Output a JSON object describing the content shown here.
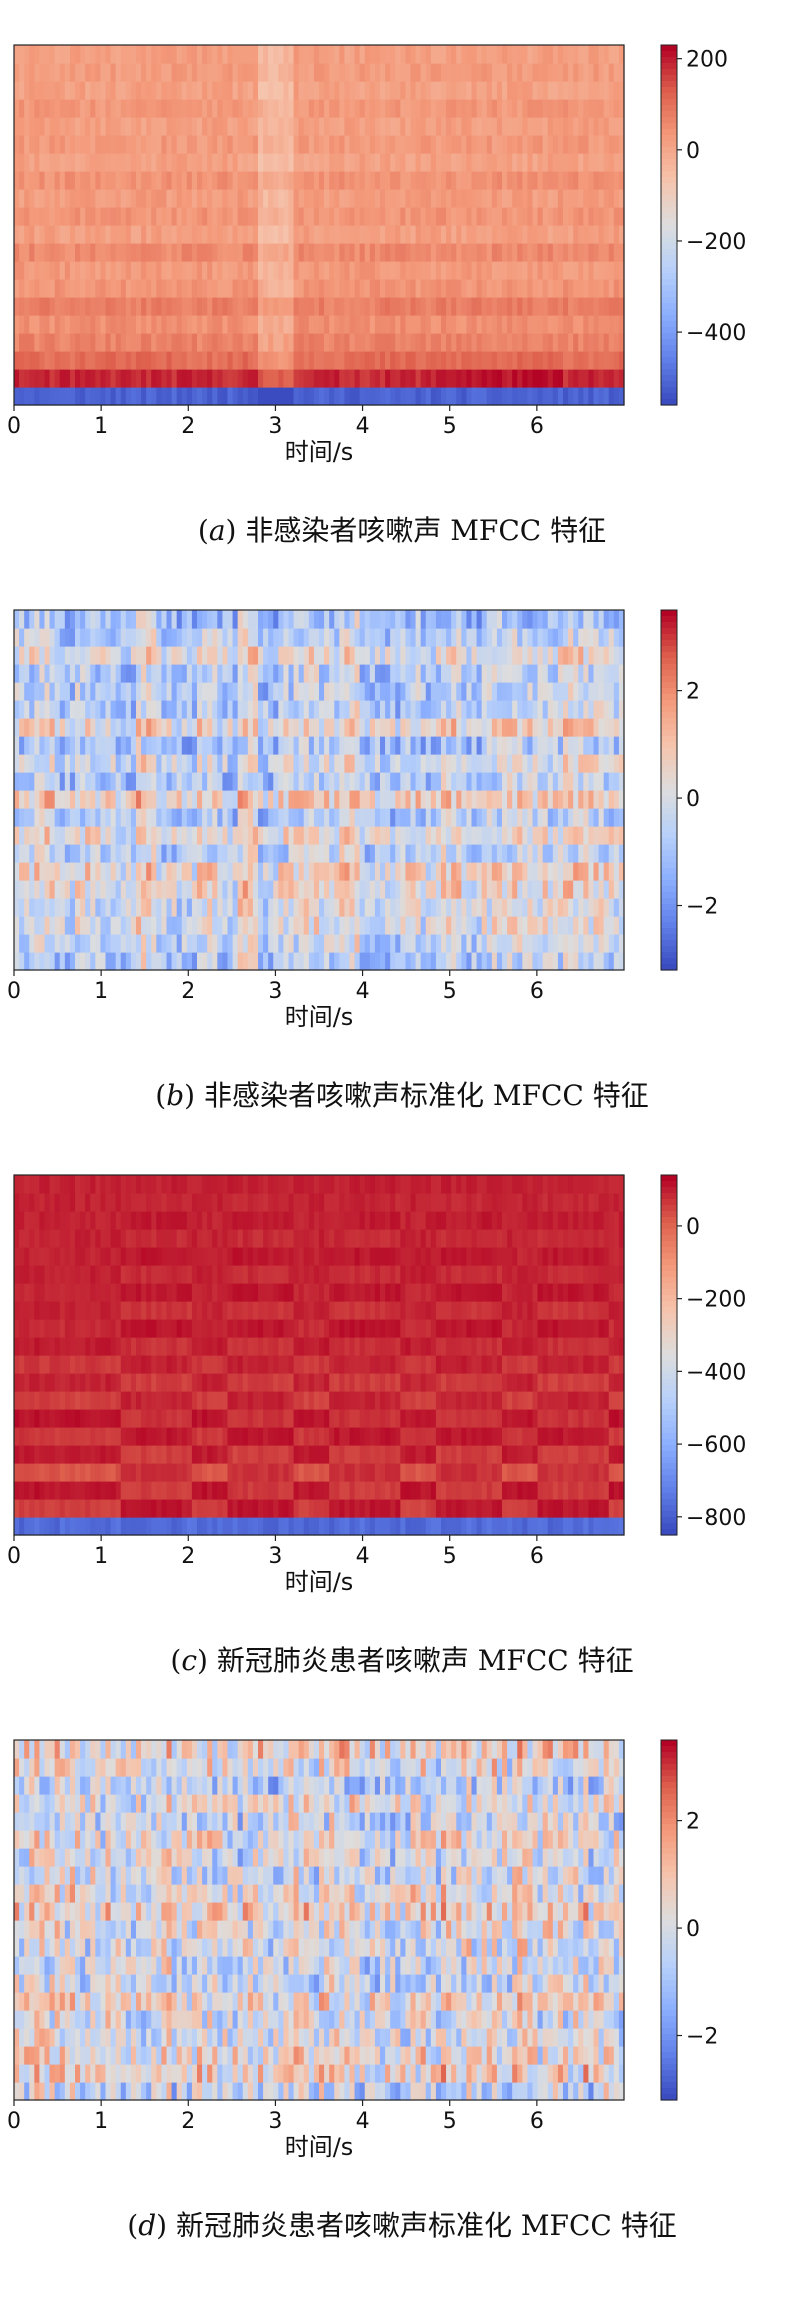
{
  "chart_data": [
    {
      "type": "heatmap",
      "caption_letter": "a",
      "caption": "非感染者咳嗽声 MFCC 特征",
      "xlabel": "时间/s",
      "x_ticks": [
        "0",
        "1",
        "2",
        "3",
        "4",
        "5",
        "6"
      ],
      "xlim": [
        0,
        7
      ],
      "colorbar_ticks": [
        200,
        0,
        -200,
        -400
      ],
      "colorbar_range": [
        -560,
        230
      ],
      "colormap": "coolwarm",
      "n_rows": 20,
      "row_profile": [
        -520,
        190,
        110,
        70,
        50,
        80,
        40,
        30,
        60,
        20,
        40,
        25,
        45,
        15,
        30,
        20,
        35,
        15,
        25,
        20
      ],
      "pattern": "steady",
      "seed": 11
    },
    {
      "type": "heatmap",
      "caption_letter": "b",
      "caption": "非感染者咳嗽声标准化 MFCC 特征",
      "xlabel": "时间/s",
      "x_ticks": [
        "0",
        "1",
        "2",
        "3",
        "4",
        "5",
        "6"
      ],
      "xlim": [
        0,
        7
      ],
      "colorbar_ticks": [
        2,
        0,
        -2
      ],
      "colorbar_range": [
        -3.2,
        3.5
      ],
      "colormap": "coolwarm",
      "n_rows": 20,
      "pattern": "noisy-blocks",
      "seed": 23
    },
    {
      "type": "heatmap",
      "caption_letter": "c",
      "caption": "新冠肺炎患者咳嗽声 MFCC 特征",
      "xlabel": "时间/s",
      "x_ticks": [
        "0",
        "1",
        "2",
        "3",
        "4",
        "5",
        "6"
      ],
      "xlim": [
        0,
        7
      ],
      "colorbar_ticks": [
        0,
        -200,
        -400,
        -600,
        -800
      ],
      "colorbar_range": [
        -850,
        140
      ],
      "colormap": "coolwarm",
      "n_rows": 20,
      "row_profile": [
        -780,
        60,
        120,
        30,
        110,
        70,
        120,
        60,
        100,
        70,
        110,
        90,
        100,
        95,
        105,
        100,
        100,
        100,
        100,
        100
      ],
      "pattern": "periodic",
      "seed": 37
    },
    {
      "type": "heatmap",
      "caption_letter": "d",
      "caption": "新冠肺炎患者咳嗽声标准化 MFCC 特征",
      "xlabel": "时间/s",
      "x_ticks": [
        "0",
        "1",
        "2",
        "3",
        "4",
        "5",
        "6"
      ],
      "xlim": [
        0,
        7
      ],
      "colorbar_ticks": [
        2,
        0,
        -2
      ],
      "colorbar_range": [
        -3.2,
        3.5
      ],
      "colormap": "coolwarm",
      "n_rows": 20,
      "pattern": "noisy-fine",
      "seed": 51
    }
  ]
}
